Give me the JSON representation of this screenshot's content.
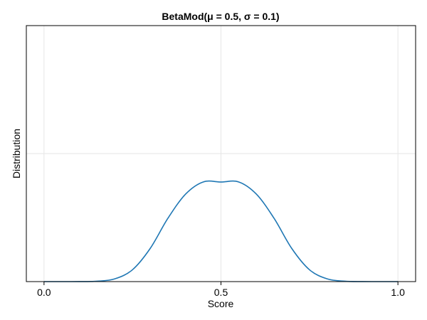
{
  "chart_data": {
    "type": "line",
    "title": "BetaMod(μ = 0.5, σ =  0.1)",
    "xlabel": "Score",
    "ylabel": "Distribution",
    "xlim": [
      -0.05,
      1.05
    ],
    "ylim": [
      0,
      8.0
    ],
    "x_ticks": [
      0.0,
      0.5,
      1.0
    ],
    "x_tick_labels": [
      "0.0",
      "0.5",
      "1.0"
    ],
    "y_ticks": [
      4.0
    ],
    "y_tick_labels": [
      ""
    ],
    "grid": true,
    "series": [
      {
        "color": "#1f77b4",
        "x": [
          0.0,
          0.05,
          0.1,
          0.15,
          0.2,
          0.25,
          0.3,
          0.35,
          0.4,
          0.45,
          0.5,
          0.55,
          0.6,
          0.65,
          0.7,
          0.75,
          0.8,
          0.85,
          0.9,
          0.95,
          1.0
        ],
        "y": [
          0.0,
          0.0,
          0.001,
          0.012,
          0.086,
          0.371,
          1.036,
          1.978,
          2.734,
          3.115,
          3.112,
          3.115,
          2.734,
          1.978,
          1.036,
          0.371,
          0.086,
          0.012,
          0.001,
          0.0,
          0.0
        ]
      }
    ]
  }
}
